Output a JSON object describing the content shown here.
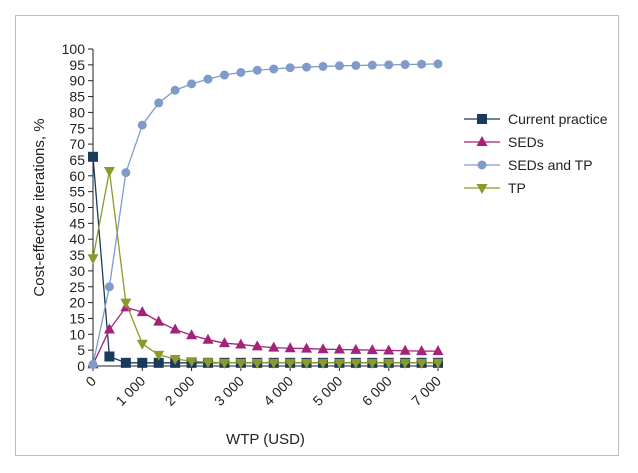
{
  "chart_data": {
    "type": "line",
    "title": "",
    "xlabel": "WTP (USD)",
    "ylabel": "Cost-effective iterations, %",
    "xlim": [
      0,
      7000
    ],
    "ylim": [
      0,
      100
    ],
    "y_ticks": [
      0,
      5,
      10,
      15,
      20,
      25,
      30,
      35,
      40,
      45,
      50,
      55,
      60,
      65,
      70,
      75,
      80,
      85,
      90,
      95,
      100
    ],
    "x_ticks": [
      0,
      1000,
      2000,
      3000,
      4000,
      5000,
      6000,
      7000
    ],
    "x_tick_labels": [
      "0",
      "1 000",
      "2 000",
      "3 000",
      "4 000",
      "5 000",
      "6 000",
      "7 000"
    ],
    "x": [
      0,
      333,
      667,
      1000,
      1333,
      1667,
      2000,
      2333,
      2667,
      3000,
      3333,
      3667,
      4000,
      4333,
      4667,
      5000,
      5333,
      5667,
      6000,
      6333,
      6667,
      7000
    ],
    "legend_position": "right",
    "grid": false,
    "series": [
      {
        "name": "Current practice",
        "color": "#1a3a5c",
        "marker": "square",
        "values": [
          66,
          3,
          1,
          1,
          1,
          1,
          1,
          1,
          1,
          1,
          1,
          1,
          1,
          1,
          1,
          1,
          1,
          1,
          1,
          1,
          1,
          1
        ]
      },
      {
        "name": "SEDs",
        "color": "#a3237a",
        "marker": "triangle-up",
        "values": [
          0.5,
          11.5,
          18.5,
          17,
          14,
          11.5,
          9.7,
          8.3,
          7.2,
          6.8,
          6.2,
          5.8,
          5.6,
          5.5,
          5.3,
          5.2,
          5.1,
          5,
          4.9,
          4.8,
          4.7,
          4.7
        ]
      },
      {
        "name": "SEDs and TP",
        "color": "#7f9cc9",
        "marker": "circle",
        "values": [
          0.5,
          25,
          61,
          76,
          83,
          87,
          89,
          90.5,
          91.8,
          92.6,
          93.3,
          93.7,
          94.1,
          94.3,
          94.5,
          94.7,
          94.8,
          94.9,
          95,
          95.1,
          95.2,
          95.3
        ]
      },
      {
        "name": "TP",
        "color": "#8b9a2a",
        "marker": "triangle-down",
        "values": [
          34,
          61.5,
          20,
          7,
          3.5,
          2.2,
          1.5,
          1.2,
          1,
          1,
          1,
          1,
          1,
          1,
          1,
          1,
          1,
          1,
          1,
          1,
          1,
          1
        ]
      }
    ]
  }
}
